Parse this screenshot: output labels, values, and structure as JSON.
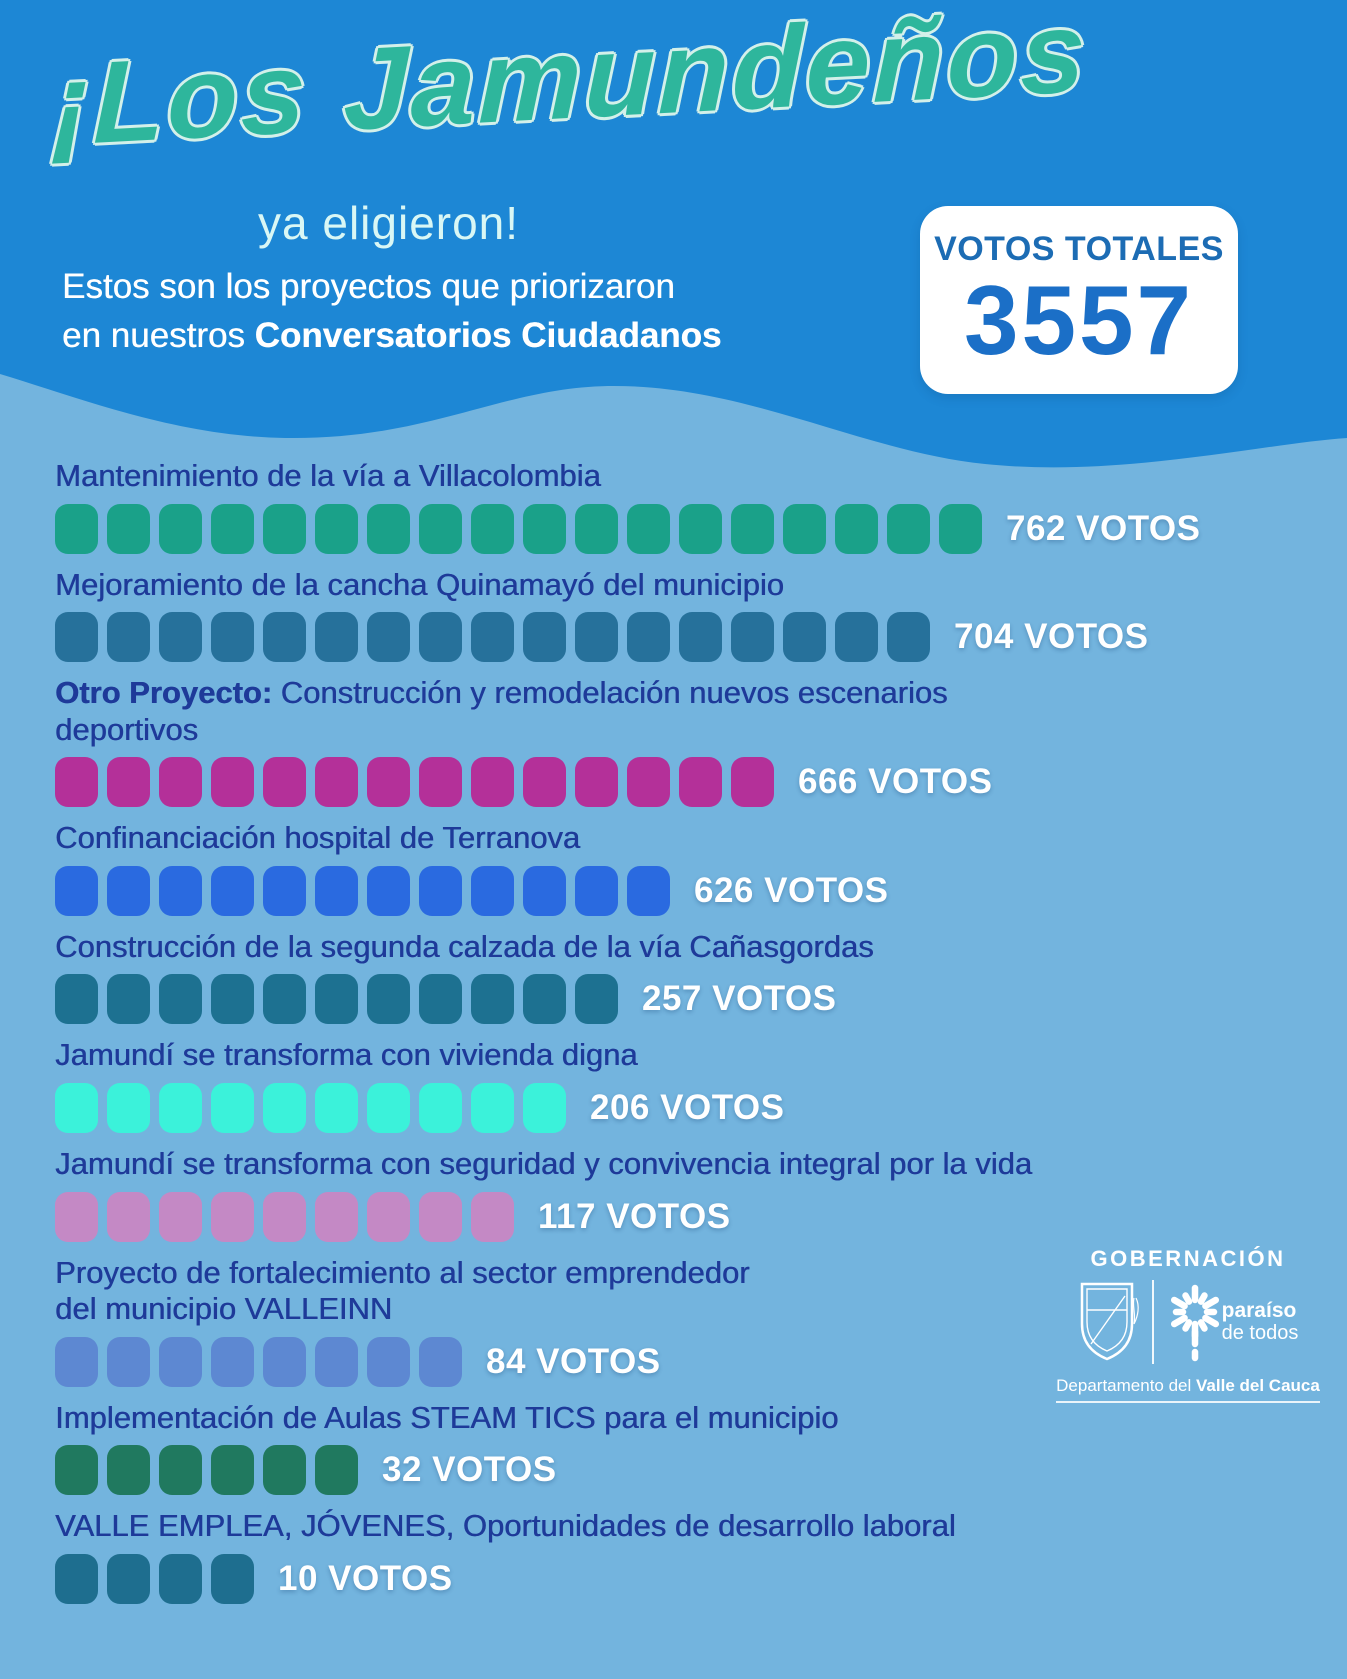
{
  "header": {
    "title": "¡Los Jamundeños",
    "script": "ya eligieron!",
    "intro_line1": "Estos son los proyectos que priorizaron",
    "intro_line2_prefix": "en nuestros ",
    "intro_line2_bold": "Conversatorios Ciudadanos",
    "votes_box": {
      "label": "VOTOS TOTALES",
      "value": "3557"
    }
  },
  "chart_data": {
    "type": "bar",
    "orientation": "horizontal",
    "title": "¡Los Jamundeños ya eligieron!",
    "subtitle": "Estos son los proyectos que priorizaron en nuestros Conversatorios Ciudadanos",
    "unit": "VOTOS",
    "total_label": "VOTOS TOTALES",
    "total": 3557,
    "legend": "none",
    "categories": [
      "Mantenimiento de la vía a Villacolombia",
      "Mejoramiento de la cancha Quinamayó del municipio",
      "Otro Proyecto: Construcción y remodelación nuevos escenarios deportivos",
      "Confinanciación hospital de Terranova",
      "Construcción de la segunda calzada de la vía Cañasgordas",
      "Jamundí se transforma con vivienda digna",
      "Jamundí se transforma con seguridad y convivencia integral por la vida",
      "Proyecto de fortalecimiento al sector emprendedor del municipio VALLEINN",
      "Implementación de Aulas STEAM TICS para el municipio",
      "VALLE EMPLEA, JÓVENES, Oportunidades de desarrollo laboral"
    ],
    "values": [
      762,
      704,
      666,
      626,
      257,
      206,
      117,
      84,
      32,
      10
    ],
    "items": [
      {
        "label_bold": "",
        "label": "Mantenimiento de la vía a Villacolombia",
        "votes": 762,
        "votes_label": "762 VOTOS",
        "squares": 18,
        "color": "#1aa189"
      },
      {
        "label_bold": "",
        "label": "Mejoramiento de la cancha Quinamayó del municipio",
        "votes": 704,
        "votes_label": "704 VOTOS",
        "squares": 17,
        "color": "#26719b"
      },
      {
        "label_bold": "Otro Proyecto:",
        "label": " Construcción y remodelación nuevos escenarios\ndeportivos",
        "votes": 666,
        "votes_label": "666 VOTOS",
        "squares": 14,
        "color": "#b43099"
      },
      {
        "label_bold": "",
        "label": "Confinanciación hospital de Terranova",
        "votes": 626,
        "votes_label": "626 VOTOS",
        "squares": 12,
        "color": "#2a6ae0"
      },
      {
        "label_bold": "",
        "label": "Construcción de la segunda calzada de la vía Cañasgordas",
        "votes": 257,
        "votes_label": "257 VOTOS",
        "squares": 11,
        "color": "#1d7191"
      },
      {
        "label_bold": "",
        "label": "Jamundí se transforma con vivienda digna",
        "votes": 206,
        "votes_label": "206 VOTOS",
        "squares": 10,
        "color": "#3bf2da"
      },
      {
        "label_bold": "",
        "label": "Jamundí se transforma con seguridad y convivencia integral por la vida",
        "votes": 117,
        "votes_label": "117 VOTOS",
        "squares": 9,
        "color": "#c489c5"
      },
      {
        "label_bold": "",
        "label": "Proyecto de fortalecimiento al sector emprendedor\ndel municipio VALLEINN",
        "votes": 84,
        "votes_label": "84 VOTOS",
        "squares": 8,
        "color": "#5d88d2"
      },
      {
        "label_bold": "",
        "label": "Implementación de Aulas STEAM TICS para el municipio",
        "votes": 32,
        "votes_label": "32 VOTOS",
        "squares": 6,
        "color": "#20795f"
      },
      {
        "label_bold": "",
        "label": "VALLE EMPLEA, JÓVENES, Oportunidades de desarrollo laboral",
        "votes": 10,
        "votes_label": "10 VOTOS",
        "squares": 4,
        "color": "#1e6e8f"
      }
    ]
  },
  "footer_logo": {
    "org": "GOBERNACIÓN",
    "tagline_bold": "paraíso",
    "tagline_rest": "de todos",
    "dept_prefix": "Departamento del ",
    "dept_bold": "Valle del Cauca"
  },
  "colors": {
    "header_background": "#1d87d5",
    "body_background": "#73b4de",
    "title_text": "#2eb69c",
    "title_outline": "#d3f0ea",
    "script_text": "#d9f7f5",
    "intro_text": "#ffffff",
    "project_label_text": "#1e3a99",
    "votes_label_text": "#ffffff",
    "votes_box_background": "#ffffff",
    "votes_box_label": "#1c6cb4",
    "votes_box_value": "#1b6fc7",
    "logo_text": "#ffffff"
  }
}
